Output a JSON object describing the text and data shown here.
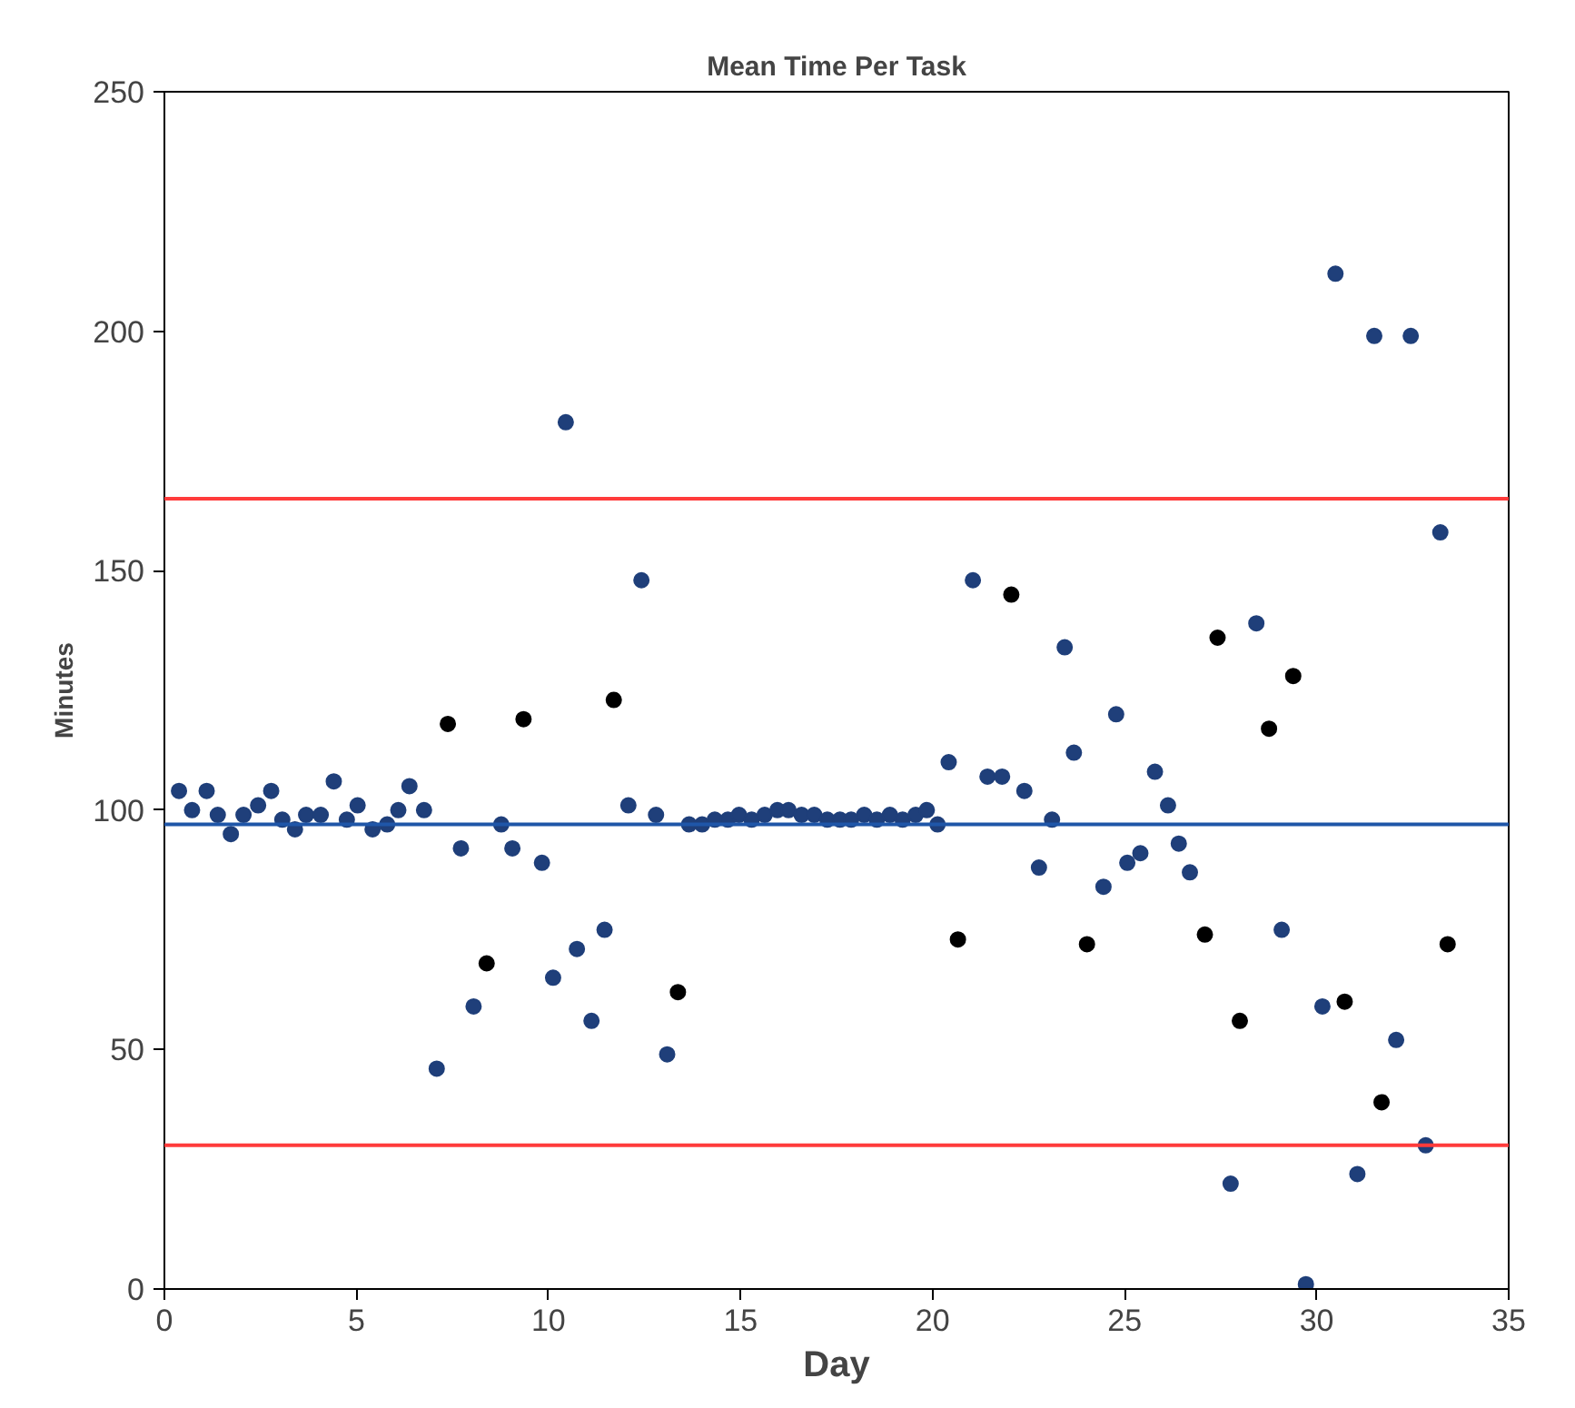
{
  "chart_data": {
    "type": "scatter",
    "title": "Mean Time Per Task",
    "xlabel": "Day",
    "ylabel": "Minutes",
    "xlim": [
      0,
      35
    ],
    "ylim": [
      0,
      250
    ],
    "xticks": [
      0,
      5,
      10,
      15,
      20,
      25,
      30,
      35
    ],
    "yticks": [
      0,
      50,
      100,
      150,
      200,
      250
    ],
    "grid": false,
    "marker": "circle",
    "series": [
      {
        "color": "#1f3f7a",
        "x": [
          0.38,
          0.72,
          1.1,
          1.39,
          1.73,
          2.06,
          2.44,
          2.78,
          3.07,
          3.4,
          3.69,
          4.07,
          4.41,
          4.75,
          5.03,
          5.42,
          5.8,
          6.09,
          6.38,
          6.76,
          7.09,
          7.72,
          8.05,
          8.77,
          9.06,
          9.83,
          10.12,
          10.45,
          10.74,
          11.12,
          11.46,
          12.08,
          12.42,
          12.8,
          13.09,
          13.66,
          14.0,
          14.33,
          14.67,
          14.96,
          15.29,
          15.63,
          15.96,
          16.25,
          16.59,
          16.92,
          17.26,
          17.59,
          17.88,
          18.22,
          18.55,
          18.89,
          19.22,
          19.56,
          19.85,
          20.13,
          20.42,
          21.05,
          21.43,
          21.81,
          22.39,
          22.77,
          23.11,
          23.44,
          23.68,
          24.45,
          24.78,
          25.07,
          25.41,
          25.79,
          26.13,
          26.41,
          26.7,
          27.76,
          28.43,
          29.09,
          29.72,
          30.15,
          30.49,
          31.06,
          31.5,
          32.07,
          32.45,
          32.84,
          33.22
        ],
        "values": [
          104,
          100,
          104,
          99,
          95,
          99,
          101,
          104,
          98,
          96,
          99,
          99,
          106,
          98,
          101,
          96,
          97,
          100,
          105,
          100,
          46,
          92,
          59,
          97,
          92,
          89,
          65,
          181,
          71,
          56,
          75,
          101,
          148,
          99,
          49,
          97,
          97,
          98,
          98,
          99,
          98,
          99,
          100,
          100,
          99,
          99,
          98,
          98,
          98,
          99,
          98,
          99,
          98,
          99,
          100,
          97,
          110,
          148,
          107,
          107,
          104,
          88,
          98,
          134,
          112,
          84,
          120,
          89,
          91,
          108,
          101,
          93,
          87,
          22,
          139,
          75,
          1,
          59,
          212,
          24,
          199,
          52,
          199,
          30,
          158
        ]
      },
      {
        "color": "#000000",
        "x": [
          7.38,
          8.39,
          9.35,
          11.7,
          13.37,
          20.66,
          22.05,
          24.02,
          27.09,
          27.42,
          28.0,
          28.76,
          29.39,
          30.73,
          31.69,
          33.41
        ],
        "values": [
          118,
          68,
          119,
          123,
          62,
          73,
          145,
          72,
          74,
          136,
          56,
          117,
          128,
          60,
          39,
          72
        ]
      }
    ],
    "ref_lines": [
      {
        "axis": "y",
        "value": 165,
        "color": "#ff3b3b"
      },
      {
        "axis": "y",
        "value": 97,
        "color": "#1f56a8"
      },
      {
        "axis": "y",
        "value": 30,
        "color": "#ff3b3b"
      }
    ]
  }
}
